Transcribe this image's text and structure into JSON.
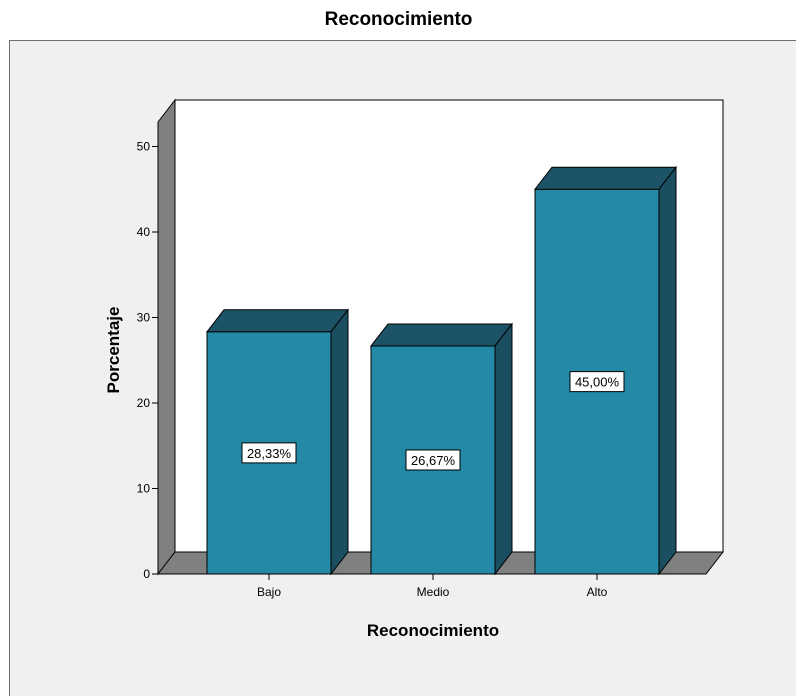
{
  "chart_data": {
    "type": "bar",
    "title": "Reconocimiento",
    "xlabel": "Reconocimiento",
    "ylabel": "Porcentaje",
    "categories": [
      "Bajo",
      "Medio",
      "Alto"
    ],
    "values": [
      28.33,
      26.67,
      45.0
    ],
    "data_labels": [
      "28,33%",
      "26,67%",
      "45,00%"
    ],
    "ylim": [
      0,
      55
    ],
    "yticks": [
      0,
      10,
      20,
      30,
      40,
      50
    ],
    "style": "3d",
    "colors": {
      "bar_front": "#2389a7",
      "bar_top": "#1d5366",
      "bar_side": "#1a4e60",
      "floor": "#808080",
      "wall": "#808080",
      "plot_bg": "#ffffff",
      "outer_bg": "#f0f0f0"
    }
  }
}
